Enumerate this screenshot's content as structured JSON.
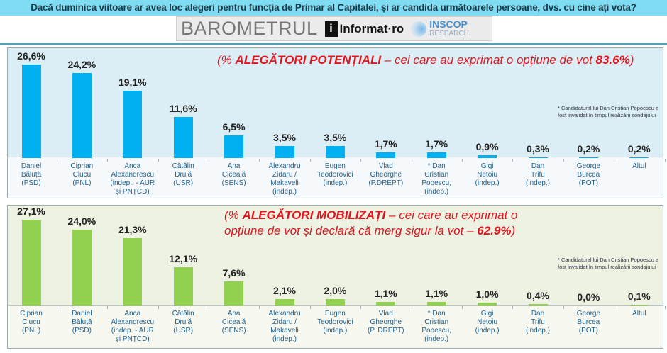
{
  "question": "Dacă duminica viitoare ar avea loc alegeri pentru funcția de Primar al Capitalei, și ar candida următoarele persoane, dvs. cu cine ați vota?",
  "logo": {
    "barometrul": "BAROMETRUL",
    "informat": "Informat·ro",
    "inscop": "INSCOP",
    "research": "RESEARCH"
  },
  "colors": {
    "bar_potential": "#00b0f0",
    "bar_mobilized": "#92d050",
    "title_red": "#e0141c",
    "header_band": "#7fdcf2"
  },
  "chart_data": [
    {
      "type": "bar",
      "title": {
        "prefix": "(% ",
        "bold": "ALEGĂTORI POTENȚIALI",
        "mid": " – cei care au exprimat o opțiune de vot ",
        "bold2": "83.6%",
        "suffix": ")"
      },
      "footnote": "* Candidatural lui Dan Cristian Popoescu a fost invalidat în timpul realizării sondajului",
      "categories": [
        "Daniel\nBăluță\n(PSD)",
        "Ciprian\nCiucu\n(PNL)",
        "Anca\nAlexandrescu\n(indep., - AUR\nși PNȚCD)",
        "Cătălin\nDrulă\n(USR)",
        "Ana\nCiceală\n(SENS)",
        "Alexandru\nZidaru /\nMakaveli\n(indep.)",
        "Eugen\nTeodorovici\n(indep.)",
        "Vlad\nGheorghe\n(P.DREPT)",
        "* Dan\nCristian\nPopescu,\n(indep.)",
        "Gigi\nNețoiu\n(indep.)",
        "Dan\nTrifu\n(indep.)",
        "George\nBurcea\n(POT)",
        "Altul"
      ],
      "values": [
        26.6,
        24.2,
        19.1,
        11.6,
        6.5,
        3.5,
        3.5,
        1.7,
        1.7,
        0.9,
        0.3,
        0.2,
        0.2
      ],
      "labels": [
        "26,6%",
        "24,2%",
        "19,1%",
        "11,6%",
        "6,5%",
        "3,5%",
        "3,5%",
        "1,7%",
        "1,7%",
        "0,9%",
        "0,3%",
        "0,2%",
        "0,2%"
      ],
      "unit": "%"
    },
    {
      "type": "bar",
      "title": {
        "prefix": "(% ",
        "bold": "ALEGĂTORI MOBILIZAȚI",
        "mid": " – cei care au exprimat o opțiune de vot și declară că merg sigur la vot – ",
        "bold2": "62.9%",
        "suffix": ")"
      },
      "footnote": "* Candidatural lui Dan Cristian Popoescu a fost invalidat în timpul realizării sondajului",
      "categories": [
        "Ciprian\nCiucu\n(PNL)",
        "Daniel\nBăluță\n(PSD)",
        "Anca\nAlexandrescu\n(indep. - AUR\nși PNȚCD)",
        "Cătălin\nDrulă\n(USR)",
        "Ana\nCiceală\n(SENS)",
        "Alexandru\nZidaru /\nMakaveli\n(indep.)",
        "Eugen\nTeodorovici\n(indep.)",
        "Vlad\nGheorghe\n(P. DREPT)",
        "* Dan\nCristian\nPopescu,\n(indep.)",
        "Gigi\nNețoiu\n(indep.)",
        "Dan\nTrifu\n(indep.)",
        "George\nBurcea\n(POT)",
        "Altul"
      ],
      "values": [
        27.1,
        24.0,
        21.3,
        12.1,
        7.6,
        2.1,
        2.0,
        1.1,
        1.1,
        1.0,
        0.4,
        0.0,
        0.1
      ],
      "labels": [
        "27,1%",
        "24,0%",
        "21,3%",
        "12,1%",
        "7,6%",
        "2,1%",
        "2,0%",
        "1,1%",
        "1,1%",
        "1,0%",
        "0,4%",
        "0,0%",
        "0,1%"
      ],
      "unit": "%"
    }
  ]
}
